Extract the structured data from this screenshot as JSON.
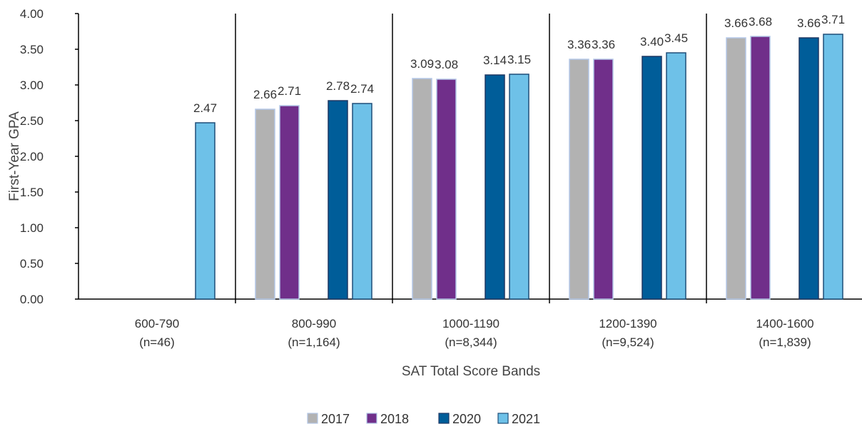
{
  "chart_data": {
    "type": "bar",
    "title": "",
    "xlabel": "SAT Total Score Bands",
    "ylabel": "First-Year GPA",
    "ylim": [
      0,
      4
    ],
    "yticks": [
      "0.00",
      "0.50",
      "1.00",
      "1.50",
      "2.00",
      "2.50",
      "3.00",
      "3.50",
      "4.00"
    ],
    "categories": [
      {
        "label": "600-790",
        "n": "(n=46)"
      },
      {
        "label": "800-990",
        "n": "(n=1,164)"
      },
      {
        "label": "1000-1190",
        "n": "(n=8,344)"
      },
      {
        "label": "1200-1390",
        "n": "(n=9,524)"
      },
      {
        "label": "1400-1600",
        "n": "(n=1,839)"
      }
    ],
    "series": [
      {
        "name": "2017",
        "color": "#B2B2B2",
        "values": [
          null,
          2.66,
          3.09,
          3.36,
          3.66
        ],
        "labels": [
          null,
          "2.66",
          "3.09",
          "3.36",
          "3.66"
        ]
      },
      {
        "name": "2018",
        "color": "#702F8A",
        "values": [
          null,
          2.71,
          3.08,
          3.36,
          3.68
        ],
        "labels": [
          null,
          "2.71",
          "3.08",
          "3.36",
          "3.68"
        ]
      },
      {
        "name": "2020",
        "color": "#005D99",
        "values": [
          null,
          2.78,
          3.14,
          3.4,
          3.66
        ],
        "labels": [
          null,
          "2.78",
          "3.14",
          "3.40",
          "3.66"
        ]
      },
      {
        "name": "2021",
        "color": "#6EC1E8",
        "values": [
          2.47,
          2.74,
          3.15,
          3.45,
          3.71
        ],
        "labels": [
          "2.47",
          "2.74",
          "3.15",
          "3.45",
          "3.71"
        ]
      }
    ],
    "grid": false,
    "category_separators": true,
    "legend_position": "bottom-center"
  }
}
